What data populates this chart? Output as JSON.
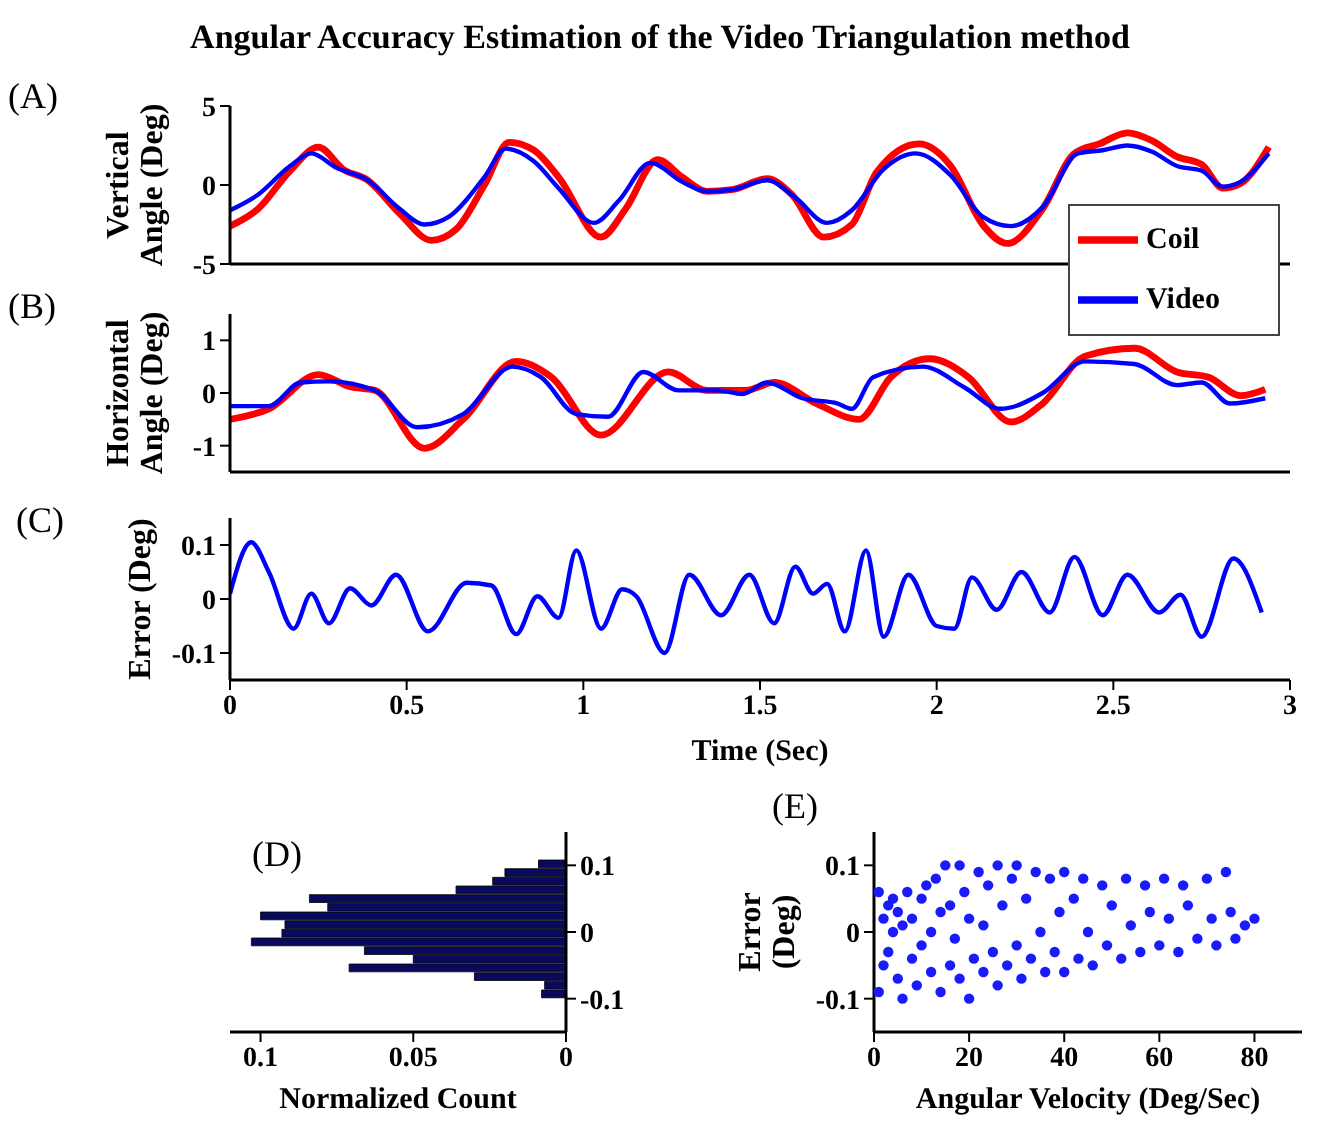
{
  "chart_data": [
    {
      "type": "line",
      "title": "Angular Accuracy Estimation of the Video Triangulation method",
      "annotations": [
        "(A)"
      ],
      "ylabel": "Vertical\nAngle (Deg)",
      "xlim": [
        0,
        3
      ],
      "xticks": [
        0,
        0.5,
        1,
        1.5,
        2,
        2.5,
        3
      ],
      "ylim": [
        -5,
        5
      ],
      "yticks": [
        -5,
        0,
        5
      ],
      "tick_labels": "y",
      "legend": "bottom right",
      "series": [
        {
          "name": "Coil",
          "color": "#ff0000",
          "x": [
            0,
            0.08,
            0.17,
            0.25,
            0.32,
            0.39,
            0.48,
            0.57,
            0.64,
            0.72,
            0.79,
            0.86,
            0.93,
            1.05,
            1.12,
            1.21,
            1.28,
            1.35,
            1.42,
            1.52,
            1.59,
            1.68,
            1.76,
            1.83,
            1.95,
            2.04,
            2.13,
            2.2,
            2.3,
            2.39,
            2.46,
            2.54,
            2.61,
            2.68,
            2.75,
            2.81,
            2.86,
            2.94
          ],
          "values": [
            -2.6,
            -1.5,
            0.9,
            2.4,
            1.0,
            0.3,
            -1.8,
            -3.5,
            -2.8,
            0,
            2.7,
            2.2,
            0.5,
            -3.3,
            -1.5,
            1.6,
            0.5,
            -0.4,
            -0.3,
            0.4,
            -0.6,
            -3.3,
            -2.5,
            0.8,
            2.6,
            1.2,
            -2.5,
            -3.7,
            -1.5,
            2.0,
            2.6,
            3.3,
            2.8,
            1.8,
            1.3,
            -0.2,
            0.1,
            2.4
          ]
        },
        {
          "name": "Video",
          "color": "#0000ff",
          "x": [
            0,
            0.08,
            0.17,
            0.23,
            0.3,
            0.39,
            0.48,
            0.55,
            0.62,
            0.72,
            0.78,
            0.86,
            0.93,
            1.03,
            1.1,
            1.19,
            1.28,
            1.35,
            1.42,
            1.52,
            1.6,
            1.69,
            1.76,
            1.85,
            1.94,
            2.04,
            2.13,
            2.21,
            2.3,
            2.4,
            2.47,
            2.54,
            2.61,
            2.68,
            2.75,
            2.81,
            2.86,
            2.94
          ],
          "values": [
            -1.6,
            -0.6,
            1.2,
            2.0,
            1.1,
            0.3,
            -1.5,
            -2.5,
            -2.0,
            0.5,
            2.3,
            1.5,
            -0.2,
            -2.4,
            -1.0,
            1.4,
            0.2,
            -0.4,
            -0.3,
            0.3,
            -0.8,
            -2.4,
            -1.6,
            1.0,
            2.0,
            0.6,
            -2.0,
            -2.6,
            -1.4,
            2.0,
            2.2,
            2.5,
            2.1,
            1.2,
            0.9,
            -0.1,
            0.2,
            2.0
          ]
        }
      ]
    },
    {
      "type": "line",
      "annotations": [
        "(B)"
      ],
      "ylabel": "Horizontal\nAngle (Deg)",
      "xlim": [
        0,
        3
      ],
      "xticks": [
        0,
        0.5,
        1,
        1.5,
        2,
        2.5,
        3
      ],
      "ylim": [
        -1.5,
        1.5
      ],
      "yticks": [
        -1,
        0,
        1
      ],
      "tick_labels": "y",
      "series": [
        {
          "color": "#ff0000",
          "x": [
            0,
            0.11,
            0.25,
            0.34,
            0.41,
            0.55,
            0.66,
            0.81,
            0.91,
            1.05,
            1.24,
            1.35,
            1.46,
            1.54,
            1.66,
            1.78,
            1.87,
            1.98,
            2.09,
            2.21,
            2.3,
            2.42,
            2.56,
            2.68,
            2.77,
            2.86,
            2.93
          ],
          "values": [
            -0.5,
            -0.3,
            0.35,
            0.12,
            0.05,
            -1.05,
            -0.5,
            0.6,
            0.3,
            -0.8,
            0.4,
            0.05,
            0.05,
            0.2,
            -0.2,
            -0.5,
            0.3,
            0.65,
            0.3,
            -0.55,
            -0.2,
            0.7,
            0.85,
            0.4,
            0.3,
            -0.05,
            0.07
          ]
        },
        {
          "color": "#0000ff",
          "x": [
            0,
            0.11,
            0.2,
            0.28,
            0.41,
            0.53,
            0.66,
            0.8,
            0.88,
            0.98,
            1.07,
            1.17,
            1.27,
            1.38,
            1.45,
            1.52,
            1.62,
            1.72,
            1.76,
            1.82,
            1.96,
            2.08,
            2.18,
            2.3,
            2.42,
            2.56,
            2.68,
            2.75,
            2.83,
            2.93
          ],
          "values": [
            -0.25,
            -0.25,
            0.2,
            0.22,
            0.05,
            -0.65,
            -0.4,
            0.5,
            0.3,
            -0.4,
            -0.45,
            0.4,
            0.05,
            0.05,
            -0.02,
            0.2,
            -0.1,
            -0.2,
            -0.3,
            0.3,
            0.5,
            0.1,
            -0.3,
            0.0,
            0.6,
            0.55,
            0.15,
            0.2,
            -0.2,
            -0.1
          ]
        }
      ]
    },
    {
      "type": "line",
      "annotations": [
        "(C)"
      ],
      "ylabel": "Error (Deg)",
      "xlabel": "Time  (Sec)",
      "xlim": [
        0,
        3
      ],
      "xticks": [
        0,
        0.5,
        1,
        1.5,
        2,
        2.5,
        3
      ],
      "ylim": [
        -0.15,
        0.15
      ],
      "yticks": [
        -0.1,
        0,
        0.1
      ],
      "series": [
        {
          "color": "#0000ff",
          "x": [
            0,
            0.06,
            0.11,
            0.18,
            0.23,
            0.28,
            0.34,
            0.4,
            0.47,
            0.56,
            0.67,
            0.74,
            0.81,
            0.87,
            0.93,
            0.98,
            1.05,
            1.11,
            1.15,
            1.23,
            1.3,
            1.39,
            1.47,
            1.54,
            1.6,
            1.65,
            1.69,
            1.74,
            1.8,
            1.85,
            1.92,
            2.0,
            2.05,
            2.1,
            2.17,
            2.24,
            2.32,
            2.39,
            2.47,
            2.54,
            2.63,
            2.69,
            2.75,
            2.84,
            2.92
          ],
          "values": [
            0.01,
            0.105,
            0.05,
            -0.055,
            0.01,
            -0.045,
            0.02,
            -0.012,
            0.045,
            -0.06,
            0.03,
            0.025,
            -0.065,
            0.005,
            -0.035,
            0.09,
            -0.055,
            0.018,
            0.005,
            -0.1,
            0.045,
            -0.03,
            0.045,
            -0.045,
            0.06,
            0.01,
            0.028,
            -0.06,
            0.09,
            -0.07,
            0.045,
            -0.05,
            -0.055,
            0.04,
            -0.02,
            0.05,
            -0.025,
            0.078,
            -0.03,
            0.045,
            -0.025,
            0.008,
            -0.07,
            0.075,
            -0.025
          ]
        }
      ]
    },
    {
      "type": "histogram",
      "orientation": "horizontal",
      "annotations": [
        "(D)"
      ],
      "xlabel": "Normalized Count",
      "xlim": [
        0.11,
        0
      ],
      "xticks": [
        0.1,
        0.05,
        0
      ],
      "ylim": [
        -0.15,
        0.15
      ],
      "yticks": [
        -0.1,
        0,
        0.1
      ],
      "color": "#0a0a5c",
      "bins": [
        -0.1,
        -0.087,
        -0.074,
        -0.061,
        -0.048,
        -0.035,
        -0.022,
        -0.009,
        0.004,
        0.017,
        0.03,
        0.043,
        0.056,
        0.069,
        0.082,
        0.095,
        0.108
      ],
      "values": [
        0.008,
        0.007,
        0.03,
        0.071,
        0.05,
        0.066,
        0.103,
        0.093,
        0.092,
        0.1,
        0.078,
        0.084,
        0.036,
        0.024,
        0.02,
        0.009
      ]
    },
    {
      "type": "scatter",
      "annotations": [
        "(E)"
      ],
      "ylabel": "Error\n(Deg)",
      "xlabel": "Angular Velocity (Deg/Sec)",
      "xlim": [
        0,
        90
      ],
      "xticks": [
        0,
        20,
        40,
        60,
        80
      ],
      "ylim": [
        -0.15,
        0.15
      ],
      "yticks": [
        -0.1,
        0,
        0.1
      ],
      "marker": "circle",
      "series": [
        {
          "color": "#1a1aff",
          "x": [
            1,
            1,
            2,
            2,
            3,
            3,
            4,
            4,
            5,
            5,
            6,
            6,
            7,
            8,
            8,
            9,
            10,
            10,
            11,
            12,
            12,
            13,
            14,
            14,
            15,
            16,
            16,
            17,
            18,
            18,
            19,
            20,
            20,
            21,
            22,
            23,
            23,
            24,
            25,
            26,
            26,
            27,
            28,
            29,
            30,
            30,
            31,
            32,
            33,
            34,
            35,
            36,
            37,
            38,
            39,
            40,
            40,
            42,
            43,
            44,
            45,
            46,
            48,
            49,
            50,
            52,
            53,
            54,
            56,
            57,
            58,
            60,
            61,
            62,
            64,
            65,
            66,
            68,
            70,
            71,
            72,
            74,
            75,
            76,
            78,
            80
          ],
          "values": [
            0.06,
            -0.09,
            0.02,
            -0.05,
            0.04,
            -0.03,
            0.0,
            0.05,
            -0.07,
            0.03,
            -0.1,
            0.01,
            0.06,
            -0.04,
            0.02,
            -0.08,
            0.05,
            -0.02,
            0.07,
            -0.06,
            0.0,
            0.08,
            -0.09,
            0.03,
            0.1,
            -0.05,
            0.04,
            -0.01,
            0.1,
            -0.07,
            0.06,
            -0.1,
            0.02,
            -0.04,
            0.09,
            -0.06,
            0.01,
            0.07,
            -0.03,
            0.1,
            -0.08,
            0.04,
            -0.05,
            0.08,
            -0.02,
            0.1,
            -0.07,
            0.05,
            -0.04,
            0.09,
            0.0,
            -0.06,
            0.08,
            -0.03,
            0.03,
            -0.06,
            0.09,
            0.05,
            -0.04,
            0.08,
            0.0,
            -0.05,
            0.07,
            -0.02,
            0.04,
            -0.04,
            0.08,
            0.01,
            -0.03,
            0.07,
            0.03,
            -0.02,
            0.08,
            0.02,
            -0.03,
            0.07,
            0.04,
            -0.01,
            0.08,
            0.02,
            -0.02,
            0.09,
            0.03,
            -0.01,
            0.01,
            0.02
          ]
        }
      ]
    }
  ]
}
